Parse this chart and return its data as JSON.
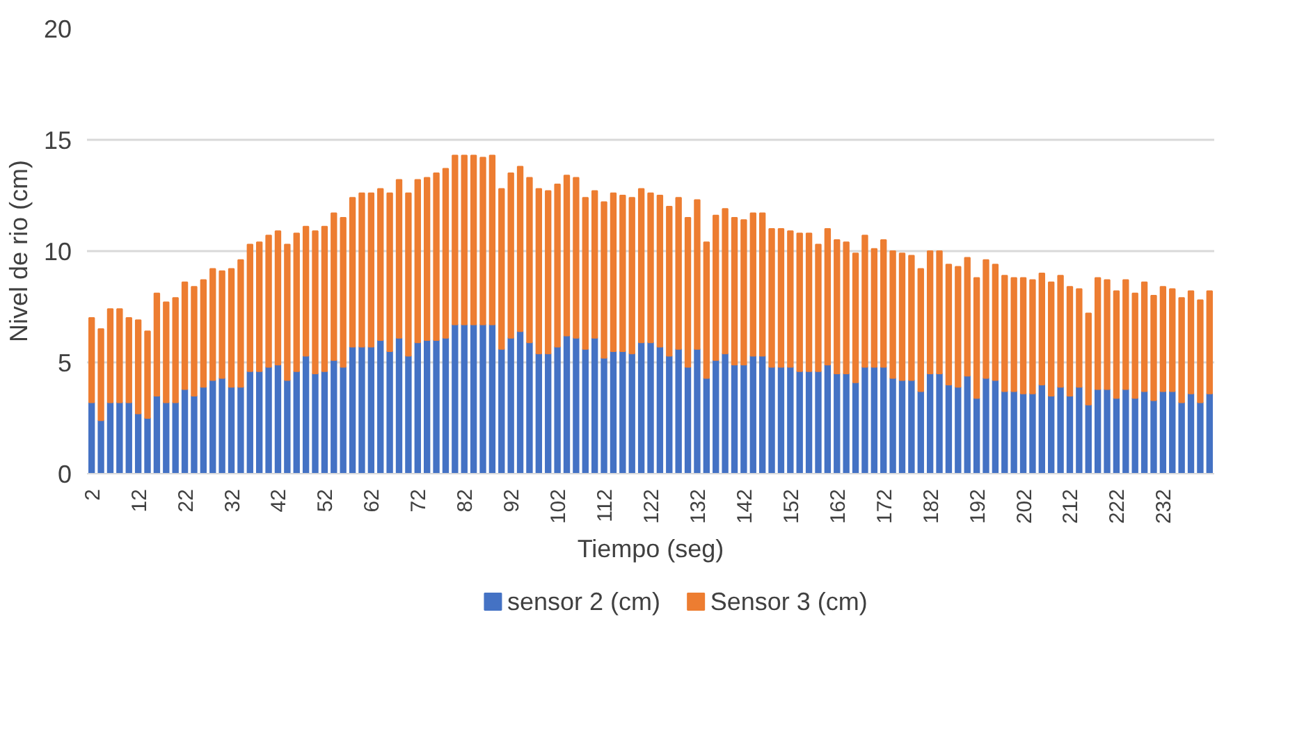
{
  "chart_data": {
    "type": "bar",
    "stacked": true,
    "xlabel": "Tiempo (seg)",
    "ylabel": "Nivel de rio (cm)",
    "categories": [
      "2",
      null,
      null,
      null,
      null,
      "12",
      null,
      null,
      null,
      null,
      "22",
      null,
      null,
      null,
      null,
      "32",
      null,
      null,
      null,
      null,
      "42",
      null,
      null,
      null,
      null,
      "52",
      null,
      null,
      null,
      null,
      "62",
      null,
      null,
      null,
      null,
      "72",
      null,
      null,
      null,
      null,
      "82",
      null,
      null,
      null,
      null,
      "92",
      null,
      null,
      null,
      null,
      "102",
      null,
      null,
      null,
      null,
      "112",
      null,
      null,
      null,
      null,
      "122",
      null,
      null,
      null,
      null,
      "132",
      null,
      null,
      null,
      null,
      "142",
      null,
      null,
      null,
      null,
      "152",
      null,
      null,
      null,
      null,
      "162",
      null,
      null,
      null,
      null,
      "172",
      null,
      null,
      null,
      null,
      "182",
      null,
      null,
      null,
      null,
      "192",
      null,
      null,
      null,
      null,
      "202",
      null,
      null,
      null,
      null,
      "212",
      null,
      null,
      null,
      null,
      "222",
      null,
      null,
      null,
      null,
      "232",
      null,
      null,
      null,
      null,
      null
    ],
    "series": [
      {
        "name": "sensor 2 (cm)",
        "color": "#4472c4",
        "values": [
          3.2,
          2.4,
          3.2,
          3.2,
          3.2,
          2.7,
          2.5,
          3.5,
          3.2,
          3.2,
          3.8,
          3.5,
          3.9,
          4.2,
          4.3,
          3.9,
          3.9,
          4.6,
          4.6,
          4.8,
          4.9,
          4.2,
          4.6,
          5.3,
          4.5,
          4.6,
          5.1,
          4.8,
          5.7,
          5.7,
          5.7,
          6.0,
          5.5,
          6.1,
          5.3,
          5.9,
          6.0,
          6.0,
          6.1,
          6.7,
          6.7,
          6.7,
          6.7,
          6.7,
          5.6,
          6.1,
          6.4,
          5.9,
          5.4,
          5.4,
          5.7,
          6.2,
          6.1,
          5.6,
          6.1,
          5.2,
          5.5,
          5.5,
          5.4,
          5.9,
          5.9,
          5.7,
          5.3,
          5.6,
          4.8,
          5.6,
          4.3,
          5.1,
          5.4,
          4.9,
          4.9,
          5.3,
          5.3,
          4.8,
          4.8,
          4.8,
          4.6,
          4.6,
          4.6,
          4.9,
          4.5,
          4.5,
          4.1,
          4.8,
          4.8,
          4.8,
          4.3,
          4.2,
          4.2,
          3.7,
          4.5,
          4.5,
          4.0,
          3.9,
          4.4,
          3.4,
          4.3,
          4.2,
          3.7,
          3.7,
          3.6,
          3.6,
          4.0,
          3.5,
          3.9,
          3.5,
          3.9,
          3.1,
          3.8,
          3.8,
          3.4,
          3.8,
          3.4,
          3.7,
          3.3,
          3.7,
          3.7,
          3.2,
          3.6,
          3.2,
          3.6
        ]
      },
      {
        "name": "Sensor 3 (cm)",
        "color": "#ed7d31",
        "values": [
          3.8,
          4.1,
          4.2,
          4.2,
          3.8,
          4.2,
          3.9,
          4.6,
          4.5,
          4.7,
          4.8,
          4.9,
          4.8,
          5.0,
          4.8,
          5.3,
          5.7,
          5.7,
          5.8,
          5.9,
          6.0,
          6.1,
          6.2,
          5.8,
          6.4,
          6.5,
          6.6,
          6.7,
          6.7,
          6.9,
          6.9,
          6.8,
          7.1,
          7.1,
          7.3,
          7.3,
          7.3,
          7.5,
          7.6,
          7.6,
          7.6,
          7.6,
          7.5,
          7.6,
          7.2,
          7.4,
          7.4,
          7.4,
          7.4,
          7.3,
          7.3,
          7.2,
          7.2,
          6.8,
          6.6,
          7.0,
          7.1,
          7.0,
          7.0,
          6.9,
          6.7,
          6.8,
          6.7,
          6.8,
          6.7,
          6.7,
          6.1,
          6.5,
          6.5,
          6.6,
          6.5,
          6.4,
          6.4,
          6.2,
          6.2,
          6.1,
          6.2,
          6.2,
          5.7,
          6.1,
          6.0,
          5.9,
          5.8,
          5.9,
          5.3,
          5.7,
          5.7,
          5.7,
          5.6,
          5.5,
          5.5,
          5.5,
          5.4,
          5.4,
          5.3,
          5.4,
          5.3,
          5.2,
          5.2,
          5.1,
          5.2,
          5.1,
          5.0,
          5.1,
          5.0,
          4.9,
          4.4,
          4.1,
          5.0,
          4.9,
          4.8,
          4.9,
          4.7,
          4.9,
          4.7,
          4.7,
          4.6,
          4.7,
          4.6,
          4.6,
          4.6
        ]
      }
    ],
    "ylim": [
      0,
      20
    ],
    "yticks": [
      0,
      5,
      10,
      15,
      20
    ],
    "grid": "y",
    "legend": "bottom"
  }
}
